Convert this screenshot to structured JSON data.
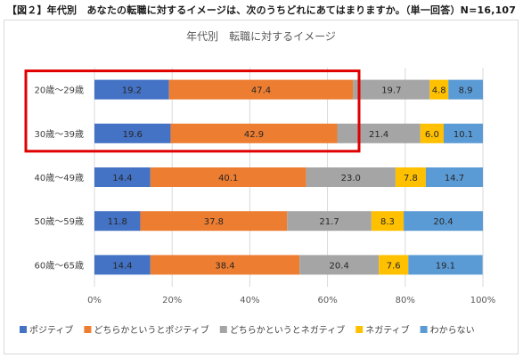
{
  "figure_title": "【図２】年代別　あなたの転職に対するイメージは、次のうちどれにあてはまりますか。（単一回答）N=16,107",
  "chart_data": {
    "type": "bar",
    "orientation": "horizontal",
    "stacked": "percent",
    "title": "年代別　転職に対するイメージ",
    "categories": [
      "20歳～29歳",
      "30歳～39歳",
      "40歳～49歳",
      "50歳～59歳",
      "60歳～65歳"
    ],
    "series": [
      {
        "name": "ポジティブ",
        "color": "#4472c4",
        "values": [
          19.2,
          19.6,
          14.4,
          11.8,
          14.4
        ]
      },
      {
        "name": "どちらかというとポジティブ",
        "color": "#ed7d31",
        "values": [
          47.4,
          42.9,
          40.1,
          37.8,
          38.4
        ]
      },
      {
        "name": "どちらかというとネガティブ",
        "color": "#a5a5a5",
        "values": [
          19.7,
          21.4,
          23.0,
          21.7,
          20.4
        ]
      },
      {
        "name": "ネガティブ",
        "color": "#ffc000",
        "values": [
          4.8,
          6.0,
          7.8,
          8.3,
          7.6
        ]
      },
      {
        "name": "わからない",
        "color": "#5b9bd5",
        "values": [
          8.9,
          10.1,
          14.7,
          20.4,
          19.1
        ]
      }
    ],
    "x_ticks": [
      "0%",
      "20%",
      "40%",
      "60%",
      "80%",
      "100%"
    ],
    "xlim": [
      0,
      100
    ],
    "grid": true,
    "legend_position": "bottom",
    "highlight": {
      "categories": [
        0,
        1
      ],
      "color": "#e00000"
    }
  }
}
